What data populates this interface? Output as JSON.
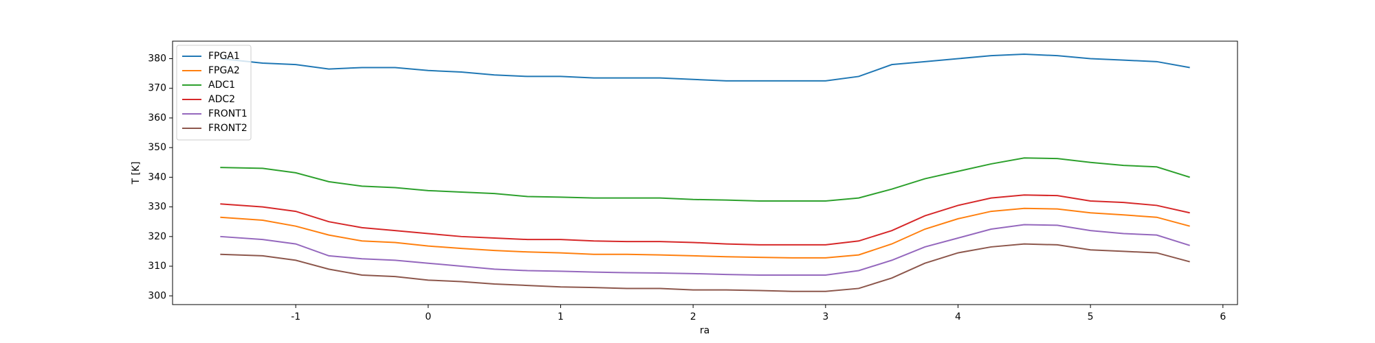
{
  "chart_data": {
    "type": "line",
    "xlabel": "ra",
    "ylabel": "T [K]",
    "x": [
      -1.57,
      -1.25,
      -1.0,
      -0.75,
      -0.5,
      -0.25,
      0,
      0.25,
      0.5,
      0.75,
      1.0,
      1.25,
      1.5,
      1.75,
      2.0,
      2.25,
      2.5,
      2.75,
      3.0,
      3.25,
      3.5,
      3.75,
      4.0,
      4.25,
      4.5,
      4.75,
      5.0,
      5.25,
      5.5,
      5.75
    ],
    "series": [
      {
        "name": "FPGA1",
        "color": "#1f77b4",
        "values": [
          380,
          378.5,
          378,
          376.5,
          377,
          377,
          376,
          375.5,
          374.5,
          374,
          374,
          373.5,
          373.5,
          373.5,
          373,
          372.5,
          372.5,
          372.5,
          372.5,
          374,
          378,
          379,
          380,
          381,
          381.5,
          381,
          380,
          379.5,
          379,
          377
        ]
      },
      {
        "name": "FPGA2",
        "color": "#ff7f0e",
        "values": [
          326.5,
          325.5,
          323.5,
          320.5,
          318.5,
          318,
          316.8,
          316,
          315.3,
          314.8,
          314.5,
          314,
          314,
          313.8,
          313.5,
          313.2,
          313,
          312.8,
          312.8,
          313.8,
          317.5,
          322.5,
          326,
          328.5,
          329.5,
          329.3,
          328,
          327.3,
          326.5,
          323.5
        ]
      },
      {
        "name": "ADC1",
        "color": "#2ca02c",
        "values": [
          343.3,
          343,
          341.5,
          338.5,
          337,
          336.5,
          335.5,
          335,
          334.5,
          333.5,
          333.3,
          333,
          333,
          333,
          332.5,
          332.3,
          332,
          332,
          332,
          333,
          336,
          339.5,
          342,
          344.5,
          346.5,
          346.3,
          345,
          344,
          343.5,
          340
        ]
      },
      {
        "name": "ADC2",
        "color": "#d62728",
        "values": [
          331,
          330,
          328.5,
          325,
          323,
          322,
          321,
          320,
          319.5,
          319,
          319,
          318.5,
          318.3,
          318.3,
          318,
          317.5,
          317.2,
          317.2,
          317.2,
          318.5,
          322,
          327,
          330.5,
          333,
          334,
          333.8,
          332,
          331.5,
          330.5,
          328
        ]
      },
      {
        "name": "FRONT1",
        "color": "#9467bd",
        "values": [
          320,
          319,
          317.5,
          313.5,
          312.5,
          312,
          311,
          310,
          309,
          308.5,
          308.3,
          308,
          307.8,
          307.7,
          307.5,
          307.2,
          307,
          307,
          307,
          308.5,
          312,
          316.5,
          319.5,
          322.5,
          324,
          323.8,
          322,
          321,
          320.5,
          317
        ]
      },
      {
        "name": "FRONT2",
        "color": "#8c564b",
        "values": [
          314,
          313.5,
          312,
          309,
          307,
          306.5,
          305.3,
          304.8,
          304,
          303.5,
          303,
          302.8,
          302.5,
          302.5,
          302,
          302,
          301.8,
          301.5,
          301.5,
          302.5,
          306,
          311,
          314.5,
          316.5,
          317.5,
          317.2,
          315.5,
          315,
          314.5,
          311.5
        ]
      }
    ],
    "xlim": [
      -1.93,
      6.11
    ],
    "xticks": [
      -1,
      0,
      1,
      2,
      3,
      4,
      5,
      6
    ],
    "ylim": [
      297.05,
      385.9
    ],
    "yticks": [
      300,
      310,
      320,
      330,
      340,
      350,
      360,
      370,
      380
    ],
    "legend": "upper-left"
  }
}
